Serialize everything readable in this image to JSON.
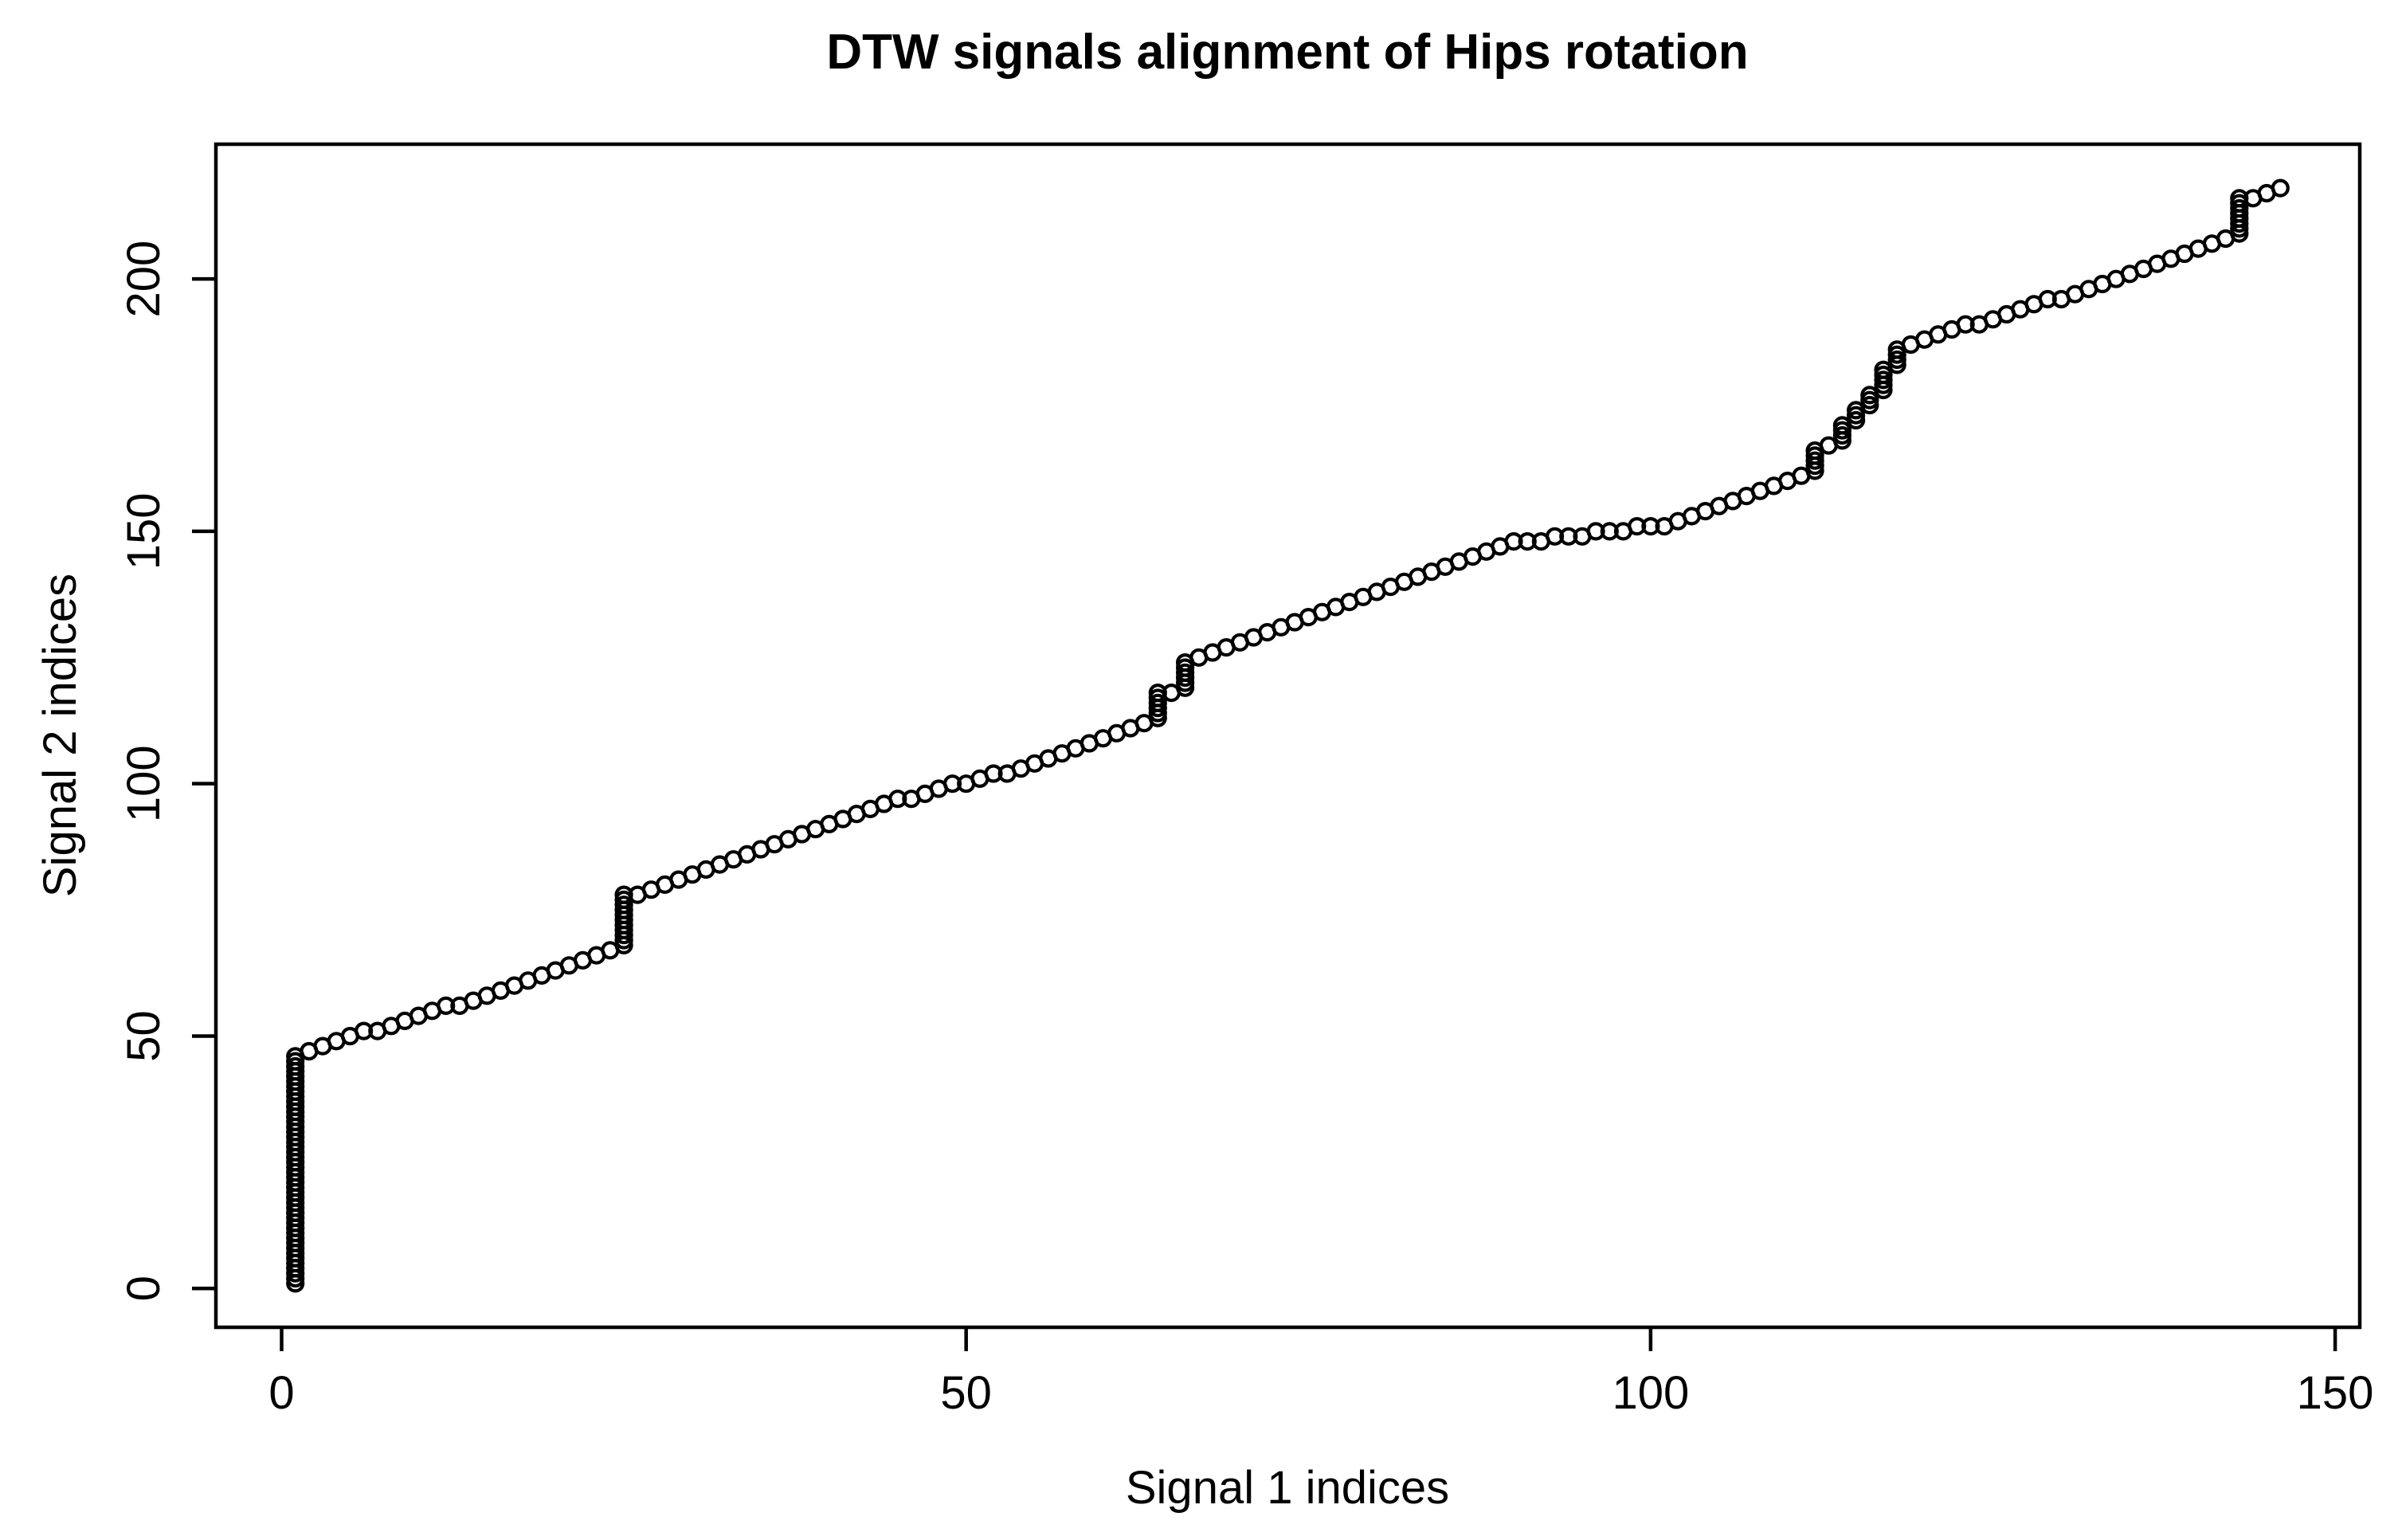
{
  "figure": {
    "title": "DTW signals alignment of Hips rotation",
    "xlabel": "Signal 1 indices",
    "ylabel": "Signal 2 indices"
  },
  "chart_data": {
    "type": "scatter",
    "title": "DTW signals alignment of Hips rotation",
    "xlabel": "Signal 1 indices",
    "ylabel": "Signal 2 indices",
    "marker": "open-circle",
    "marker_color": "#000000",
    "background": "#ffffff",
    "grid": false,
    "legend": null,
    "x_ticks": [
      0,
      50,
      100,
      150
    ],
    "y_ticks": [
      0,
      50,
      100,
      150,
      200
    ],
    "xlim": [
      -4.8,
      151.8
    ],
    "ylim": [
      -7.7,
      226.7
    ],
    "x_range_data": [
      1,
      146
    ],
    "y_range_data": [
      1,
      218
    ],
    "points": [
      [
        1,
        1
      ],
      [
        1,
        2
      ],
      [
        1,
        3
      ],
      [
        1,
        4
      ],
      [
        1,
        5
      ],
      [
        1,
        6
      ],
      [
        1,
        7
      ],
      [
        1,
        8
      ],
      [
        1,
        9
      ],
      [
        1,
        10
      ],
      [
        1,
        11
      ],
      [
        1,
        12
      ],
      [
        1,
        13
      ],
      [
        1,
        14
      ],
      [
        1,
        15
      ],
      [
        1,
        16
      ],
      [
        1,
        17
      ],
      [
        1,
        18
      ],
      [
        1,
        19
      ],
      [
        1,
        20
      ],
      [
        1,
        21
      ],
      [
        1,
        22
      ],
      [
        1,
        23
      ],
      [
        1,
        24
      ],
      [
        1,
        25
      ],
      [
        1,
        26
      ],
      [
        1,
        27
      ],
      [
        1,
        28
      ],
      [
        1,
        29
      ],
      [
        1,
        30
      ],
      [
        1,
        31
      ],
      [
        1,
        32
      ],
      [
        1,
        33
      ],
      [
        1,
        34
      ],
      [
        1,
        35
      ],
      [
        1,
        36
      ],
      [
        1,
        37
      ],
      [
        1,
        38
      ],
      [
        1,
        39
      ],
      [
        1,
        40
      ],
      [
        1,
        41
      ],
      [
        1,
        42
      ],
      [
        1,
        43
      ],
      [
        1,
        44
      ],
      [
        1,
        45
      ],
      [
        1,
        46
      ],
      [
        2,
        47
      ],
      [
        3,
        48
      ],
      [
        4,
        49
      ],
      [
        5,
        50
      ],
      [
        6,
        51
      ],
      [
        7,
        51
      ],
      [
        8,
        52
      ],
      [
        9,
        53
      ],
      [
        10,
        54
      ],
      [
        11,
        55
      ],
      [
        12,
        56
      ],
      [
        13,
        56
      ],
      [
        14,
        57
      ],
      [
        15,
        58
      ],
      [
        16,
        59
      ],
      [
        17,
        60
      ],
      [
        18,
        61
      ],
      [
        19,
        62
      ],
      [
        20,
        63
      ],
      [
        21,
        64
      ],
      [
        22,
        65
      ],
      [
        23,
        66
      ],
      [
        24,
        67
      ],
      [
        25,
        68
      ],
      [
        25,
        69
      ],
      [
        25,
        70
      ],
      [
        25,
        71
      ],
      [
        25,
        72
      ],
      [
        25,
        73
      ],
      [
        25,
        74
      ],
      [
        25,
        75
      ],
      [
        25,
        76
      ],
      [
        25,
        77
      ],
      [
        25,
        78
      ],
      [
        26,
        78
      ],
      [
        27,
        79
      ],
      [
        28,
        80
      ],
      [
        29,
        81
      ],
      [
        30,
        82
      ],
      [
        31,
        83
      ],
      [
        32,
        84
      ],
      [
        33,
        85
      ],
      [
        34,
        86
      ],
      [
        35,
        87
      ],
      [
        36,
        88
      ],
      [
        37,
        89
      ],
      [
        38,
        90
      ],
      [
        39,
        91
      ],
      [
        40,
        92
      ],
      [
        41,
        93
      ],
      [
        42,
        94
      ],
      [
        43,
        95
      ],
      [
        44,
        96
      ],
      [
        45,
        97
      ],
      [
        46,
        97
      ],
      [
        47,
        98
      ],
      [
        48,
        99
      ],
      [
        49,
        100
      ],
      [
        50,
        100
      ],
      [
        51,
        101
      ],
      [
        52,
        102
      ],
      [
        53,
        102
      ],
      [
        54,
        103
      ],
      [
        55,
        104
      ],
      [
        56,
        105
      ],
      [
        57,
        106
      ],
      [
        58,
        107
      ],
      [
        59,
        108
      ],
      [
        60,
        109
      ],
      [
        61,
        110
      ],
      [
        62,
        111
      ],
      [
        63,
        112
      ],
      [
        64,
        113
      ],
      [
        64,
        114
      ],
      [
        64,
        115
      ],
      [
        64,
        116
      ],
      [
        64,
        117
      ],
      [
        64,
        118
      ],
      [
        65,
        118
      ],
      [
        66,
        119
      ],
      [
        66,
        120
      ],
      [
        66,
        121
      ],
      [
        66,
        122
      ],
      [
        66,
        123
      ],
      [
        66,
        124
      ],
      [
        67,
        125
      ],
      [
        68,
        126
      ],
      [
        69,
        127
      ],
      [
        70,
        128
      ],
      [
        71,
        129
      ],
      [
        72,
        130
      ],
      [
        73,
        131
      ],
      [
        74,
        132
      ],
      [
        75,
        133
      ],
      [
        76,
        134
      ],
      [
        77,
        135
      ],
      [
        78,
        136
      ],
      [
        79,
        137
      ],
      [
        80,
        138
      ],
      [
        81,
        139
      ],
      [
        82,
        140
      ],
      [
        83,
        141
      ],
      [
        84,
        142
      ],
      [
        85,
        143
      ],
      [
        86,
        144
      ],
      [
        87,
        145
      ],
      [
        88,
        146
      ],
      [
        89,
        147
      ],
      [
        90,
        148
      ],
      [
        91,
        148
      ],
      [
        92,
        148
      ],
      [
        93,
        149
      ],
      [
        94,
        149
      ],
      [
        95,
        149
      ],
      [
        96,
        150
      ],
      [
        97,
        150
      ],
      [
        98,
        150
      ],
      [
        99,
        151
      ],
      [
        100,
        151
      ],
      [
        101,
        151
      ],
      [
        102,
        152
      ],
      [
        103,
        153
      ],
      [
        104,
        154
      ],
      [
        105,
        155
      ],
      [
        106,
        156
      ],
      [
        107,
        157
      ],
      [
        108,
        158
      ],
      [
        109,
        159
      ],
      [
        110,
        160
      ],
      [
        111,
        161
      ],
      [
        112,
        162
      ],
      [
        112,
        163
      ],
      [
        112,
        164
      ],
      [
        112,
        165
      ],
      [
        112,
        166
      ],
      [
        113,
        167
      ],
      [
        114,
        168
      ],
      [
        114,
        169
      ],
      [
        114,
        170
      ],
      [
        114,
        171
      ],
      [
        115,
        172
      ],
      [
        115,
        173
      ],
      [
        115,
        174
      ],
      [
        116,
        175
      ],
      [
        116,
        176
      ],
      [
        116,
        177
      ],
      [
        117,
        178
      ],
      [
        117,
        179
      ],
      [
        117,
        180
      ],
      [
        117,
        181
      ],
      [
        117,
        182
      ],
      [
        118,
        183
      ],
      [
        118,
        184
      ],
      [
        118,
        185
      ],
      [
        118,
        186
      ],
      [
        119,
        187
      ],
      [
        120,
        188
      ],
      [
        121,
        189
      ],
      [
        122,
        190
      ],
      [
        123,
        191
      ],
      [
        124,
        191
      ],
      [
        125,
        192
      ],
      [
        126,
        193
      ],
      [
        127,
        194
      ],
      [
        128,
        195
      ],
      [
        129,
        196
      ],
      [
        130,
        196
      ],
      [
        131,
        197
      ],
      [
        132,
        198
      ],
      [
        133,
        199
      ],
      [
        134,
        200
      ],
      [
        135,
        201
      ],
      [
        136,
        202
      ],
      [
        137,
        203
      ],
      [
        138,
        204
      ],
      [
        139,
        205
      ],
      [
        140,
        206
      ],
      [
        141,
        207
      ],
      [
        142,
        208
      ],
      [
        143,
        209
      ],
      [
        143,
        210
      ],
      [
        143,
        211
      ],
      [
        143,
        212
      ],
      [
        143,
        213
      ],
      [
        143,
        214
      ],
      [
        143,
        215
      ],
      [
        143,
        216
      ],
      [
        144,
        216
      ],
      [
        145,
        217
      ],
      [
        146,
        218
      ]
    ]
  }
}
